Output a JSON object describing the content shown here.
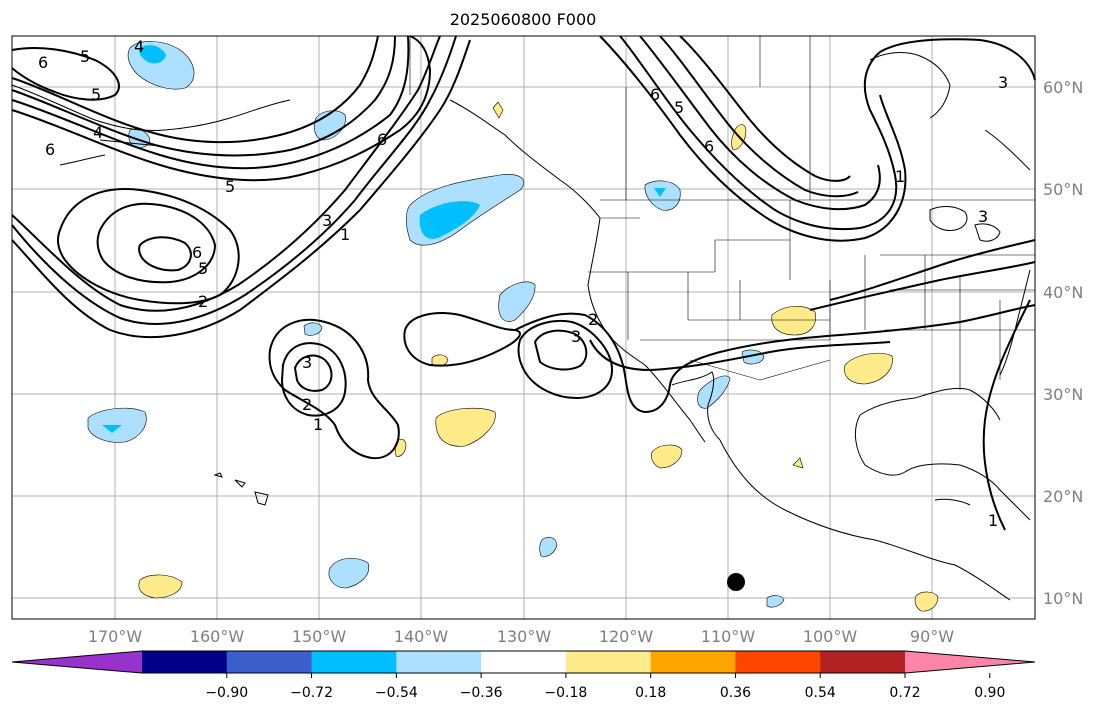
{
  "title": "2025060800 F000",
  "latitude_labels": [
    "60°N",
    "50°N",
    "40°N",
    "30°N",
    "20°N",
    "10°N"
  ],
  "longitude_labels": [
    "170°W",
    "160°W",
    "150°W",
    "140°W",
    "130°W",
    "120°W",
    "110°W",
    "100°W",
    "90°W"
  ],
  "colorbar": {
    "tick_labels": [
      "−0.90",
      "−0.72",
      "−0.54",
      "−0.36",
      "−0.18",
      "0.18",
      "0.36",
      "0.54",
      "0.72",
      "0.90"
    ],
    "colors": [
      "#9932CC",
      "#00008B",
      "#3B5FCD",
      "#00BFFF",
      "#ADDFFF",
      "#FFFFFF",
      "#FFEB8A",
      "#FFA500",
      "#FF4500",
      "#B22222",
      "#FF85A8"
    ],
    "extend": "both"
  },
  "contour_labels": [
    "6",
    "5",
    "4",
    "5",
    "6",
    "4",
    "5",
    "6",
    "3",
    "1",
    "6",
    "5",
    "2",
    "6",
    "5",
    "6",
    "1",
    "3",
    "3",
    "2",
    "1",
    "3",
    "2",
    "3",
    "1"
  ],
  "colors": {
    "grid": "#b0b0b0",
    "contour": "#000000",
    "coast": "#000000",
    "positive_fill": "#FFEB8A",
    "negative_fill": "#ADDFFF",
    "negative_core": "#00BFFF"
  }
}
